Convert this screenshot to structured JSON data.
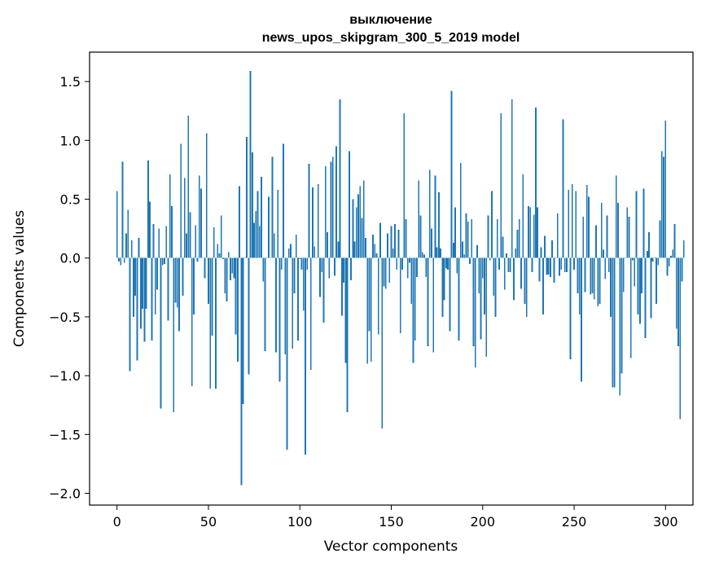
{
  "colors": {
    "bar": "#1f77b4",
    "axis": "#000000",
    "background": "#ffffff"
  },
  "chart_data": {
    "type": "bar",
    "title": "выключение",
    "subtitle": "news_upos_skipgram_300_5_2019 model",
    "xlabel": "Vector components",
    "ylabel": "Components values",
    "xlim": [
      -15,
      315
    ],
    "ylim": [
      -2.1,
      1.75
    ],
    "xticks": [
      0,
      50,
      100,
      150,
      200,
      250,
      300
    ],
    "yticks": [
      -2.0,
      -1.5,
      -1.0,
      -0.5,
      0.0,
      0.5,
      1.0,
      1.5
    ],
    "xtick_labels": [
      "0",
      "50",
      "100",
      "150",
      "200",
      "250",
      "300"
    ],
    "ytick_labels": [
      "−2.0",
      "−1.5",
      "−1.0",
      "−0.5",
      "0.0",
      "0.5",
      "1.0",
      "1.5"
    ],
    "grid": false,
    "values": [
      0.57,
      -0.03,
      -0.06,
      0.82,
      -0.04,
      0.21,
      0.41,
      -0.96,
      0.15,
      -0.5,
      -0.32,
      -0.87,
      0.17,
      -0.6,
      -0.43,
      -0.71,
      -0.43,
      0.83,
      0.48,
      -0.7,
      0.29,
      -0.48,
      -0.27,
      0.25,
      -1.28,
      -0.06,
      -0.05,
      0.27,
      -0.53,
      0.71,
      0.44,
      -1.31,
      -0.38,
      -0.42,
      -0.62,
      0.97,
      -0.32,
      0.68,
      0.21,
      1.21,
      0.39,
      -1.09,
      -0.48,
      0.28,
      -0.03,
      0.7,
      0.59,
      0.0,
      -0.17,
      1.06,
      -0.39,
      -1.11,
      -0.66,
      0.26,
      -1.11,
      0.12,
      0.04,
      0.36,
      -0.01,
      -0.3,
      -0.37,
      0.05,
      -0.19,
      -0.13,
      -0.17,
      -0.65,
      -0.88,
      0.61,
      -1.93,
      -1.24,
      0.0,
      1.03,
      -0.99,
      1.59,
      0.9,
      0.3,
      0.4,
      0.57,
      0.27,
      0.69,
      -0.2,
      -0.79,
      0.0,
      0.52,
      0.0,
      0.86,
      0.21,
      -0.8,
      0.58,
      -1.05,
      -0.1,
      0.97,
      -0.82,
      -1.63,
      0.08,
      0.12,
      -0.77,
      -0.3,
      0.2,
      -0.7,
      -0.01,
      -0.1,
      -0.45,
      -1.67,
      -0.1,
      0.8,
      -0.95,
      0.6,
      0.1,
      0.0,
      0.63,
      -0.33,
      -0.12,
      -0.55,
      0.78,
      0.22,
      -0.17,
      0.82,
      0.86,
      -0.15,
      0.95,
      0.14,
      1.35,
      -0.49,
      -0.21,
      -0.89,
      -1.31,
      0.91,
      -0.19,
      0.5,
      0.14,
      0.43,
      0.54,
      0.61,
      0.34,
      0.66,
      0.17,
      -0.9,
      -0.62,
      -0.88,
      0.2,
      0.12,
      0.04,
      -0.65,
      0.3,
      -1.45,
      -0.24,
      -0.26,
      0.21,
      -0.21,
      0.27,
      0.08,
      0.29,
      -0.1,
      0.24,
      -0.64,
      -0.1,
      1.23,
      0.33,
      -0.17,
      -0.04,
      -0.39,
      -0.89,
      -0.7,
      -0.16,
      0.66,
      0.36,
      0.05,
      0.03,
      -0.16,
      -0.75,
      0.75,
      0.25,
      -0.8,
      0.7,
      0.09,
      0.56,
      0.08,
      -0.5,
      -0.36,
      -0.09,
      -0.1,
      -0.62,
      1.42,
      0.13,
      0.43,
      -0.13,
      -0.7,
      0.81,
      0.14,
      0.03,
      0.38,
      0.31,
      -0.05,
      0.33,
      -0.75,
      -0.93,
      0.11,
      -0.3,
      -0.69,
      -0.17,
      -0.48,
      -0.84,
      0.36,
      -0.02,
      0.57,
      -0.32,
      -0.5,
      0.33,
      -0.1,
      1.23,
      0.18,
      -0.27,
      0.04,
      -0.12,
      -0.12,
      1.35,
      -0.36,
      0.08,
      0.24,
      0.33,
      -0.26,
      0.71,
      -0.39,
      -0.5,
      0.44,
      0.43,
      -0.12,
      0.37,
      1.28,
      0.43,
      -0.2,
      0.09,
      -0.48,
      0.19,
      -0.14,
      -0.14,
      -0.16,
      0.15,
      -0.21,
      0.0,
      0.38,
      -0.15,
      -0.1,
      1.18,
      -0.12,
      -0.12,
      0.58,
      -0.86,
      0.63,
      -0.1,
      0.57,
      -0.3,
      -0.48,
      -1.05,
      0.35,
      -0.29,
      0.62,
      0.52,
      -0.31,
      -0.3,
      -0.35,
      0.28,
      -0.41,
      -0.39,
      0.47,
      0.07,
      -0.18,
      0.36,
      -0.12,
      -0.5,
      -1.1,
      -1.1,
      0.7,
      0.47,
      -1.17,
      -0.98,
      -0.29,
      0.0,
      0.43,
      0.35,
      -0.85,
      -0.02,
      -0.24,
      0.57,
      -0.48,
      -0.56,
      -0.3,
      0.59,
      -0.68,
      0.06,
      0.22,
      -0.51,
      -0.03,
      0.0,
      -0.39,
      -0.06,
      0.32,
      0.91,
      0.86,
      1.17,
      -0.15,
      -0.07,
      0.02,
      0.07,
      0.29,
      -0.6,
      -0.75,
      -1.37,
      -0.2,
      0.15
    ]
  }
}
